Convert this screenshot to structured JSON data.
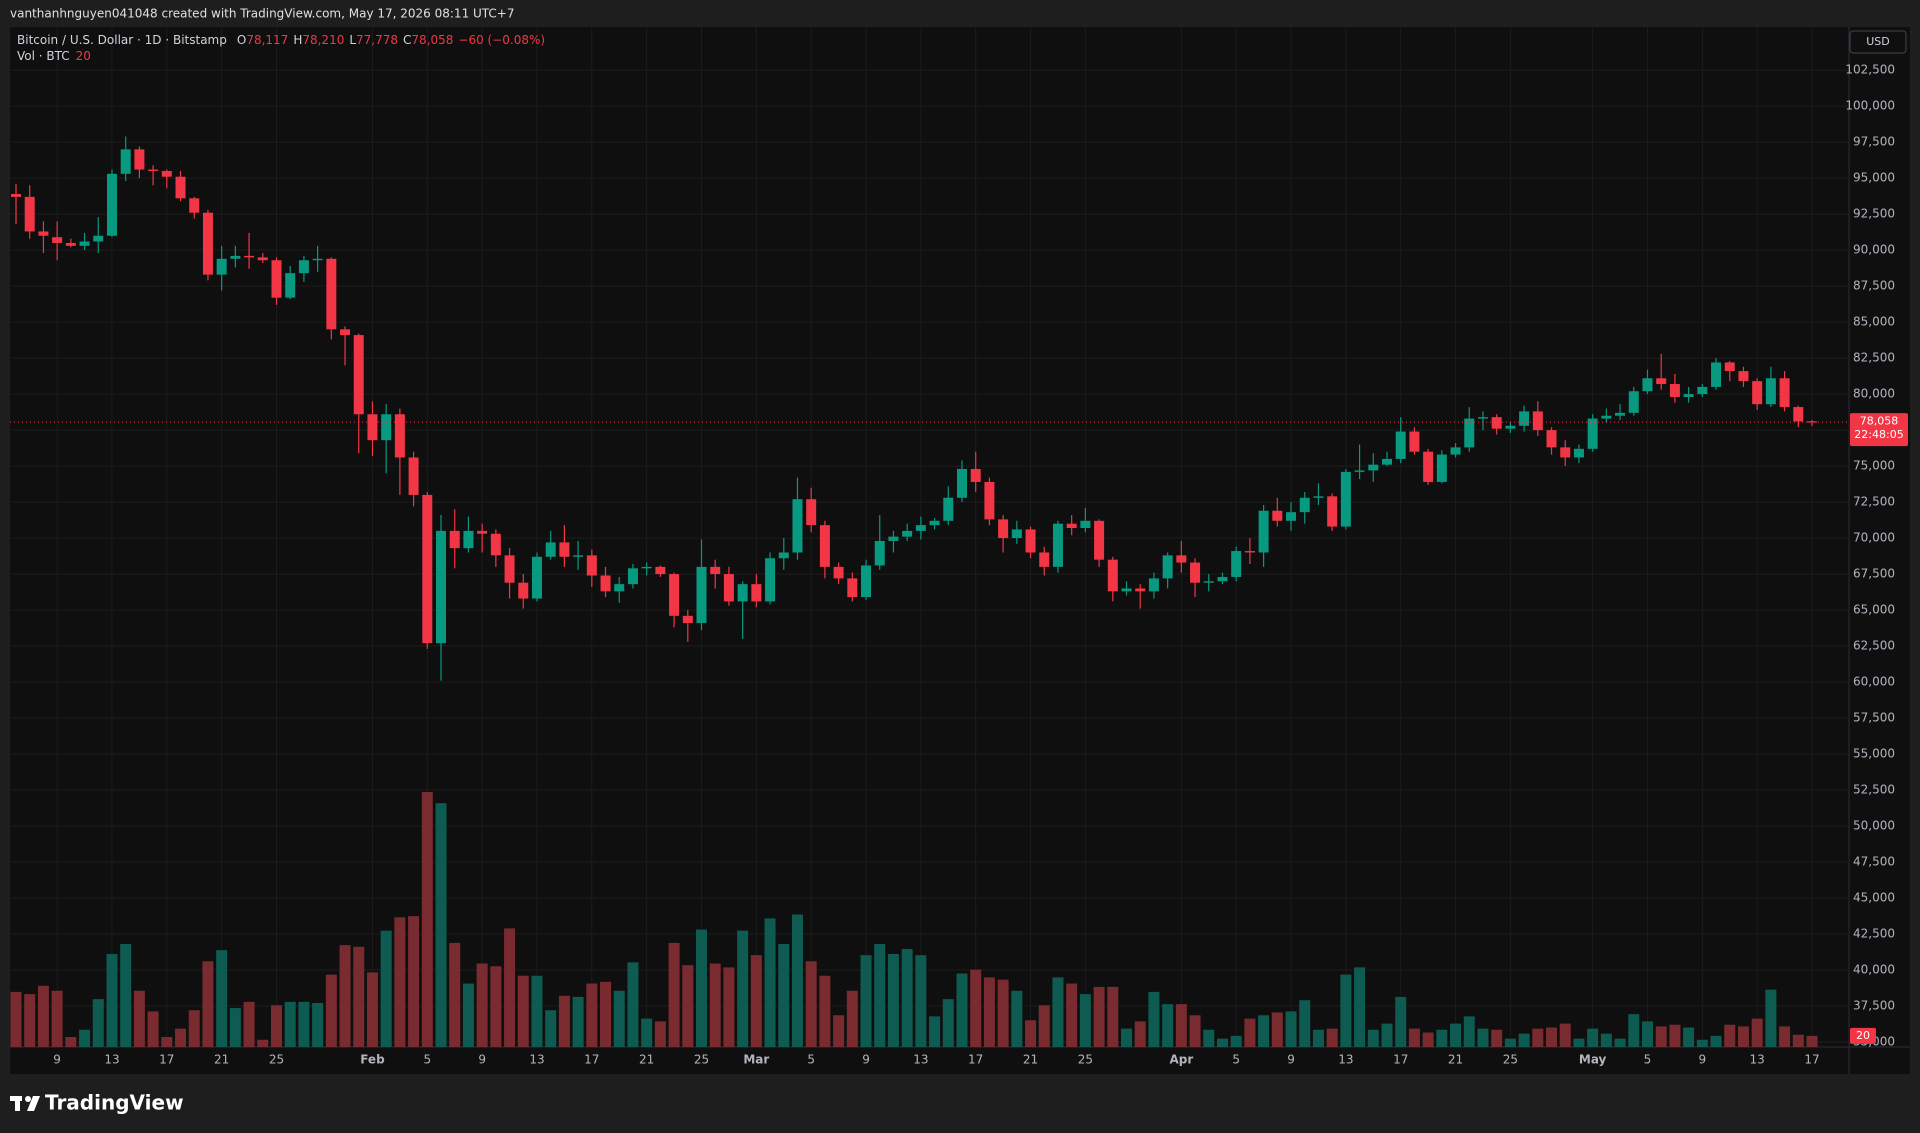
{
  "header": "vanthanhnguyen041048 created with TradingView.com, May 17, 2026 08:11 UTC+7",
  "footer": "TradingView",
  "currency": "USD",
  "chart_data": {
    "type": "candlestick",
    "title": "Bitcoin / U.S. Dollar · 1D · Bitstamp",
    "legend": {
      "items": [
        {
          "key": "O",
          "text": "78,117"
        },
        {
          "key": "H",
          "text": "78,210"
        },
        {
          "key": "L",
          "text": "77,778"
        },
        {
          "key": "C",
          "text": "78,058"
        }
      ],
      "change": "−60 (−0.08%)"
    },
    "volume_title": "Vol · BTC",
    "last_price": {
      "label": "78,058",
      "countdown": "22:48:05"
    },
    "up_color": "#089981",
    "down_color": "#f23645",
    "volume_up_color": "#0e5b52",
    "volume_down_color": "#7a2b2f",
    "grid": true,
    "x": [
      "2026-01-06",
      "2026-01-07",
      "2026-01-08",
      "2026-01-09",
      "2026-01-10",
      "2026-01-11",
      "2026-01-12",
      "2026-01-13",
      "2026-01-14",
      "2026-01-15",
      "2026-01-16",
      "2026-01-17",
      "2026-01-18",
      "2026-01-19",
      "2026-01-20",
      "2026-01-21",
      "2026-01-22",
      "2026-01-23",
      "2026-01-24",
      "2026-01-25",
      "2026-01-26",
      "2026-01-27",
      "2026-01-28",
      "2026-01-29",
      "2026-01-30",
      "2026-01-31",
      "2026-02-01",
      "2026-02-02",
      "2026-02-03",
      "2026-02-04",
      "2026-02-05",
      "2026-02-06",
      "2026-02-07",
      "2026-02-08",
      "2026-02-09",
      "2026-02-10",
      "2026-02-11",
      "2026-02-12",
      "2026-02-13",
      "2026-02-14",
      "2026-02-15",
      "2026-02-16",
      "2026-02-17",
      "2026-02-18",
      "2026-02-19",
      "2026-02-20",
      "2026-02-21",
      "2026-02-22",
      "2026-02-23",
      "2026-02-24",
      "2026-02-25",
      "2026-02-26",
      "2026-02-27",
      "2026-02-28",
      "2026-03-01",
      "2026-03-02",
      "2026-03-03",
      "2026-03-04",
      "2026-03-05",
      "2026-03-06",
      "2026-03-07",
      "2026-03-08",
      "2026-03-09",
      "2026-03-10",
      "2026-03-11",
      "2026-03-12",
      "2026-03-13",
      "2026-03-14",
      "2026-03-15",
      "2026-03-16",
      "2026-03-17",
      "2026-03-18",
      "2026-03-19",
      "2026-03-20",
      "2026-03-21",
      "2026-03-22",
      "2026-03-23",
      "2026-03-24",
      "2026-03-25",
      "2026-03-26",
      "2026-03-27",
      "2026-03-28",
      "2026-03-29",
      "2026-03-30",
      "2026-03-31",
      "2026-04-01",
      "2026-04-02",
      "2026-04-03",
      "2026-04-04",
      "2026-04-05",
      "2026-04-06",
      "2026-04-07",
      "2026-04-08",
      "2026-04-09",
      "2026-04-10",
      "2026-04-11",
      "2026-04-12",
      "2026-04-13",
      "2026-04-14",
      "2026-04-15",
      "2026-04-16",
      "2026-04-17",
      "2026-04-18",
      "2026-04-19",
      "2026-04-20",
      "2026-04-21",
      "2026-04-22",
      "2026-04-23",
      "2026-04-24",
      "2026-04-25",
      "2026-04-26",
      "2026-04-27",
      "2026-04-28",
      "2026-04-29",
      "2026-04-30",
      "2026-05-01",
      "2026-05-02",
      "2026-05-03",
      "2026-05-04",
      "2026-05-05",
      "2026-05-06",
      "2026-05-07",
      "2026-05-08",
      "2026-05-09",
      "2026-05-10",
      "2026-05-11",
      "2026-05-12",
      "2026-05-13",
      "2026-05-14",
      "2026-05-15",
      "2026-05-16",
      "2026-05-17"
    ],
    "open": [
      93900,
      93700,
      91300,
      90900,
      90500,
      90300,
      90600,
      91000,
      95300,
      97000,
      95600,
      95500,
      95100,
      93600,
      92600,
      88300,
      89400,
      89600,
      89500,
      89300,
      86700,
      88400,
      89300,
      89400,
      84500,
      84100,
      78600,
      76800,
      78600,
      75600,
      73000,
      62700,
      70500,
      69300,
      70500,
      70300,
      68800,
      66900,
      65800,
      68700,
      69700,
      68700,
      68800,
      67400,
      66300,
      66800,
      67900,
      68000,
      67500,
      64600,
      64100,
      68000,
      67500,
      65600,
      66800,
      65600,
      68600,
      69000,
      72700,
      70900,
      68000,
      67200,
      65900,
      68100,
      69800,
      70100,
      70500,
      70900,
      71200,
      72800,
      74800,
      73900,
      71300,
      70000,
      70600,
      69000,
      68000,
      71000,
      70700,
      71200,
      68500,
      66300,
      66500,
      66300,
      67200,
      68800,
      68300,
      66900,
      67000,
      67300,
      69100,
      69000,
      71900,
      71200,
      71800,
      72800,
      72900,
      70800,
      74600,
      74700,
      75100,
      75500,
      77400,
      76000,
      73900,
      75800,
      76300,
      78300,
      78400,
      77600,
      77800,
      78800,
      77500,
      76300,
      75600,
      76200,
      78300,
      78500,
      78700,
      80200,
      81100,
      80700,
      79800,
      80000,
      80500,
      82200,
      81600,
      80900,
      79300,
      81100,
      79100,
      78117
    ],
    "high": [
      94600,
      94500,
      92000,
      92000,
      90800,
      91200,
      92300,
      95600,
      97900,
      97200,
      95900,
      95600,
      95500,
      93700,
      92800,
      90300,
      90300,
      91200,
      89800,
      89500,
      88900,
      89600,
      90300,
      89500,
      84700,
      84200,
      79500,
      79300,
      79000,
      76000,
      73200,
      71600,
      72000,
      71500,
      71000,
      70600,
      69300,
      67500,
      69000,
      70500,
      70900,
      69800,
      69200,
      68000,
      67300,
      68200,
      68300,
      68100,
      67600,
      65000,
      69900,
      68500,
      68000,
      67000,
      67500,
      69000,
      70000,
      74200,
      73500,
      71200,
      68300,
      67600,
      68500,
      71600,
      70500,
      71000,
      71500,
      71400,
      73600,
      75400,
      76000,
      74200,
      71600,
      71200,
      70800,
      69400,
      71200,
      71600,
      72100,
      71300,
      68700,
      67000,
      66800,
      67600,
      69000,
      69800,
      68600,
      67500,
      67600,
      69400,
      70000,
      72300,
      72800,
      72500,
      73200,
      73800,
      73100,
      74800,
      76500,
      75900,
      76000,
      78400,
      77700,
      76200,
      76100,
      76600,
      79100,
      78800,
      78600,
      78100,
      79200,
      79500,
      77700,
      76800,
      76500,
      78600,
      79000,
      79300,
      80500,
      81700,
      82800,
      81400,
      80500,
      80700,
      82500,
      82300,
      81900,
      81100,
      81900,
      81600,
      79200,
      78210
    ],
    "low": [
      91800,
      90800,
      89800,
      89300,
      90200,
      90000,
      89800,
      90900,
      94800,
      95000,
      94500,
      94300,
      93400,
      92200,
      87900,
      87200,
      88800,
      88700,
      89100,
      86200,
      86600,
      87800,
      88500,
      83800,
      82000,
      75900,
      75700,
      74500,
      73000,
      72200,
      62300,
      60100,
      67900,
      69000,
      69000,
      68000,
      65800,
      65100,
      65600,
      68500,
      68000,
      67800,
      66600,
      65900,
      65500,
      66500,
      67400,
      67300,
      63800,
      62800,
      63600,
      66500,
      65300,
      63000,
      65200,
      65400,
      67800,
      68500,
      70400,
      67200,
      66800,
      65600,
      65700,
      67800,
      69000,
      69800,
      69900,
      70600,
      70900,
      72500,
      73200,
      70900,
      69000,
      69600,
      68600,
      67400,
      67600,
      70200,
      70400,
      68000,
      65600,
      66000,
      65100,
      65800,
      66500,
      67600,
      65900,
      66300,
      66800,
      67000,
      68200,
      68000,
      70800,
      70500,
      71000,
      72300,
      70500,
      70600,
      74100,
      73900,
      75000,
      75200,
      75800,
      73700,
      73800,
      75600,
      76000,
      77500,
      77200,
      77300,
      77400,
      77100,
      75800,
      75000,
      75200,
      76000,
      78000,
      78200,
      78500,
      80000,
      80300,
      79400,
      79400,
      79800,
      80300,
      80900,
      80500,
      78900,
      79100,
      78800,
      77700,
      77778
    ],
    "close": [
      93700,
      91300,
      91000,
      90500,
      90300,
      90600,
      91000,
      95300,
      97000,
      95600,
      95500,
      95100,
      93600,
      92600,
      88300,
      89400,
      89600,
      89500,
      89300,
      86700,
      88400,
      89300,
      89400,
      84500,
      84100,
      78600,
      76800,
      78600,
      75600,
      73000,
      62700,
      70500,
      69300,
      70500,
      70300,
      68800,
      66900,
      65800,
      68700,
      69700,
      68700,
      68800,
      67400,
      66300,
      66800,
      67900,
      68000,
      67500,
      64600,
      64100,
      68000,
      67500,
      65600,
      66800,
      65600,
      68600,
      69000,
      72700,
      70900,
      68000,
      67200,
      65900,
      68100,
      69800,
      70100,
      70500,
      70900,
      71200,
      72800,
      74800,
      73900,
      71300,
      70000,
      70600,
      69000,
      68000,
      71000,
      70700,
      71200,
      68500,
      66300,
      66500,
      66300,
      67200,
      68800,
      68300,
      66900,
      67000,
      67300,
      69100,
      69000,
      71900,
      71200,
      71800,
      72800,
      72900,
      70800,
      74600,
      74700,
      75100,
      75500,
      77400,
      76000,
      73900,
      75800,
      76300,
      78300,
      78400,
      77600,
      77800,
      78800,
      77500,
      76300,
      75600,
      76200,
      78300,
      78500,
      78700,
      80200,
      81100,
      80700,
      79800,
      80000,
      80500,
      82200,
      81600,
      80900,
      79300,
      81100,
      79100,
      78100,
      78058
    ],
    "volume": [
      99,
      95,
      110,
      101,
      18,
      31,
      86,
      167,
      185,
      101,
      64,
      18,
      33,
      66,
      154,
      174,
      70,
      81,
      13,
      75,
      81,
      81,
      79,
      130,
      183,
      180,
      134,
      209,
      233,
      235,
      458,
      438,
      187,
      114,
      150,
      145,
      213,
      128,
      128,
      66,
      92,
      90,
      114,
      117,
      101,
      152,
      51,
      46,
      187,
      147,
      211,
      150,
      143,
      209,
      165,
      231,
      185,
      238,
      154,
      128,
      57,
      101,
      165,
      185,
      167,
      176,
      165,
      55,
      86,
      132,
      139,
      125,
      121,
      101,
      48,
      75,
      125,
      114,
      95,
      108,
      108,
      33,
      46,
      99,
      77,
      77,
      57,
      31,
      15,
      20,
      51,
      57,
      62,
      64,
      84,
      31,
      33,
      130,
      143,
      31,
      42,
      90,
      33,
      26,
      31,
      42,
      55,
      33,
      31,
      15,
      24,
      33,
      35,
      42,
      15,
      33,
      24,
      15,
      59,
      46,
      37,
      40,
      35,
      13,
      20,
      40,
      37,
      51,
      103,
      37,
      22,
      20
    ],
    "ylim": [
      34650,
      105500
    ],
    "yticks": [
      {
        "value": 35000,
        "label": "35,000"
      },
      {
        "value": 37500,
        "label": "37,500"
      },
      {
        "value": 40000,
        "label": "40,000"
      },
      {
        "value": 42500,
        "label": "42,500"
      },
      {
        "value": 45000,
        "label": "45,000"
      },
      {
        "value": 47500,
        "label": "47,500"
      },
      {
        "value": 50000,
        "label": "50,000"
      },
      {
        "value": 52500,
        "label": "52,500"
      },
      {
        "value": 55000,
        "label": "55,000"
      },
      {
        "value": 57500,
        "label": "57,500"
      },
      {
        "value": 60000,
        "label": "60,000"
      },
      {
        "value": 62500,
        "label": "62,500"
      },
      {
        "value": 65000,
        "label": "65,000"
      },
      {
        "value": 67500,
        "label": "67,500"
      },
      {
        "value": 70000,
        "label": "70,000"
      },
      {
        "value": 72500,
        "label": "72,500"
      },
      {
        "value": 75000,
        "label": "75,000"
      },
      {
        "value": 77500,
        "label": "77,500"
      },
      {
        "value": 80000,
        "label": "80,000"
      },
      {
        "value": 82500,
        "label": "82,500"
      },
      {
        "value": 85000,
        "label": "85,000"
      },
      {
        "value": 87500,
        "label": "87,500"
      },
      {
        "value": 90000,
        "label": "90,000"
      },
      {
        "value": 92500,
        "label": "92,500"
      },
      {
        "value": 95000,
        "label": "95,000"
      },
      {
        "value": 97500,
        "label": "97,500"
      },
      {
        "value": 100000,
        "label": "100,000"
      },
      {
        "value": 102500,
        "label": "102,500"
      }
    ],
    "xticks": [
      {
        "value": "2026-01-09",
        "label": "9"
      },
      {
        "value": "2026-01-13",
        "label": "13"
      },
      {
        "value": "2026-01-17",
        "label": "17"
      },
      {
        "value": "2026-01-21",
        "label": "21"
      },
      {
        "value": "2026-01-25",
        "label": "25"
      },
      {
        "value": "2026-02-01",
        "label": "Feb"
      },
      {
        "value": "2026-02-05",
        "label": "5"
      },
      {
        "value": "2026-02-09",
        "label": "9"
      },
      {
        "value": "2026-02-13",
        "label": "13"
      },
      {
        "value": "2026-02-17",
        "label": "17"
      },
      {
        "value": "2026-02-21",
        "label": "21"
      },
      {
        "value": "2026-02-25",
        "label": "25"
      },
      {
        "value": "2026-03-01",
        "label": "Mar"
      },
      {
        "value": "2026-03-05",
        "label": "5"
      },
      {
        "value": "2026-03-09",
        "label": "9"
      },
      {
        "value": "2026-03-13",
        "label": "13"
      },
      {
        "value": "2026-03-17",
        "label": "17"
      },
      {
        "value": "2026-03-21",
        "label": "21"
      },
      {
        "value": "2026-03-25",
        "label": "25"
      },
      {
        "value": "2026-04-01",
        "label": "Apr"
      },
      {
        "value": "2026-04-05",
        "label": "5"
      },
      {
        "value": "2026-04-09",
        "label": "9"
      },
      {
        "value": "2026-04-13",
        "label": "13"
      },
      {
        "value": "2026-04-17",
        "label": "17"
      },
      {
        "value": "2026-04-21",
        "label": "21"
      },
      {
        "value": "2026-04-25",
        "label": "25"
      },
      {
        "value": "2026-05-01",
        "label": "May"
      },
      {
        "value": "2026-05-05",
        "label": "5"
      },
      {
        "value": "2026-05-09",
        "label": "9"
      },
      {
        "value": "2026-05-13",
        "label": "13"
      },
      {
        "value": "2026-05-17",
        "label": "17"
      }
    ]
  }
}
